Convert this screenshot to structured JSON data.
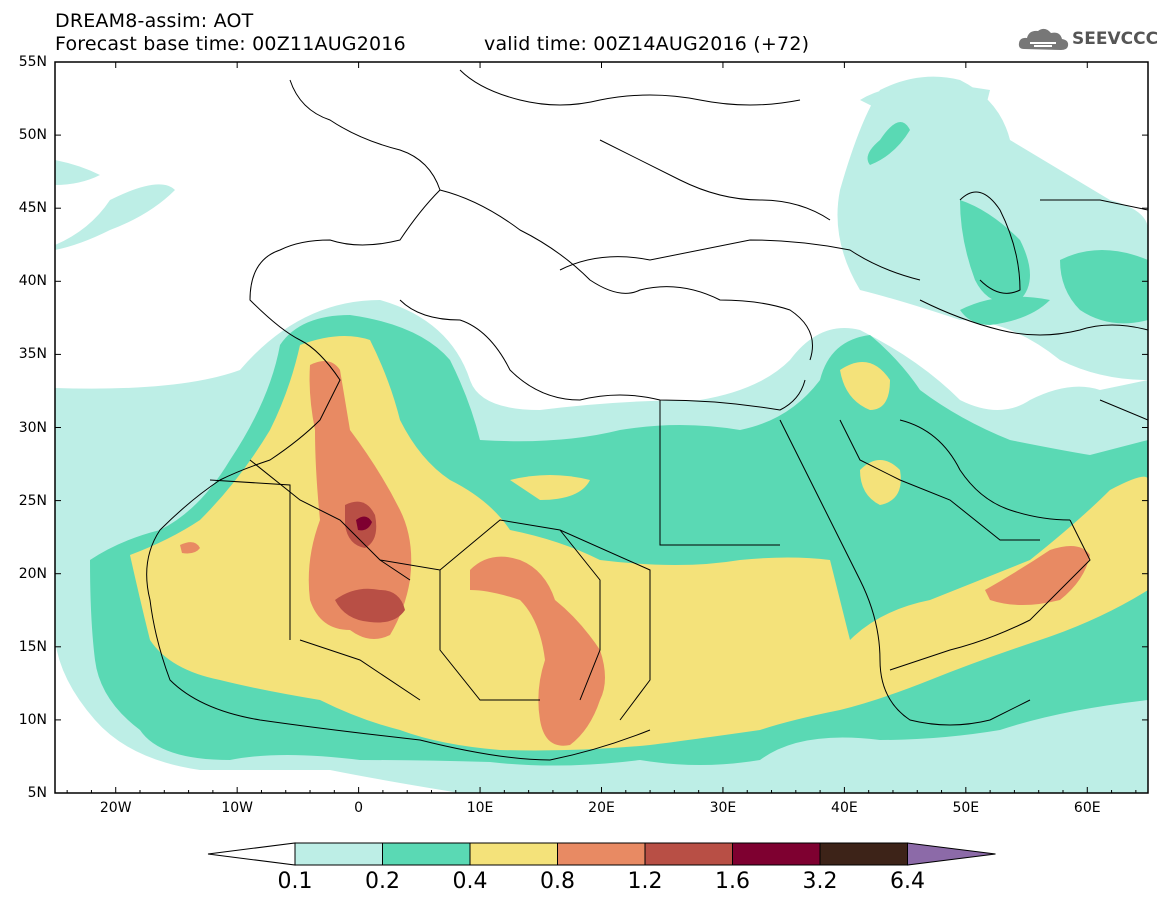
{
  "header": {
    "title": "DREAM8-assim: AOT",
    "base_time": "Forecast base time: 00Z11AUG2016",
    "valid_time": "valid time: 00Z14AUG2016 (+72)",
    "logo_text": "SEEVCCC"
  },
  "map": {
    "lat_labels": [
      "55N",
      "50N",
      "45N",
      "40N",
      "35N",
      "30N",
      "25N",
      "20N",
      "15N",
      "10N",
      "5N"
    ],
    "lon_labels": [
      "20W",
      "10W",
      "0",
      "10E",
      "20E",
      "30E",
      "40E",
      "50E",
      "60E"
    ],
    "lat_range": [
      5,
      55
    ],
    "lon_range": [
      -25,
      65
    ]
  },
  "legend": {
    "labels": [
      "0.1",
      "0.2",
      "0.4",
      "0.8",
      "1.2",
      "1.6",
      "3.2",
      "6.4"
    ],
    "colors": [
      "#ffffff",
      "#bdeee6",
      "#5ad9b4",
      "#f4e27a",
      "#e88a63",
      "#b84f45",
      "#7e0030",
      "#3d2318",
      "#8c6aa8"
    ]
  }
}
